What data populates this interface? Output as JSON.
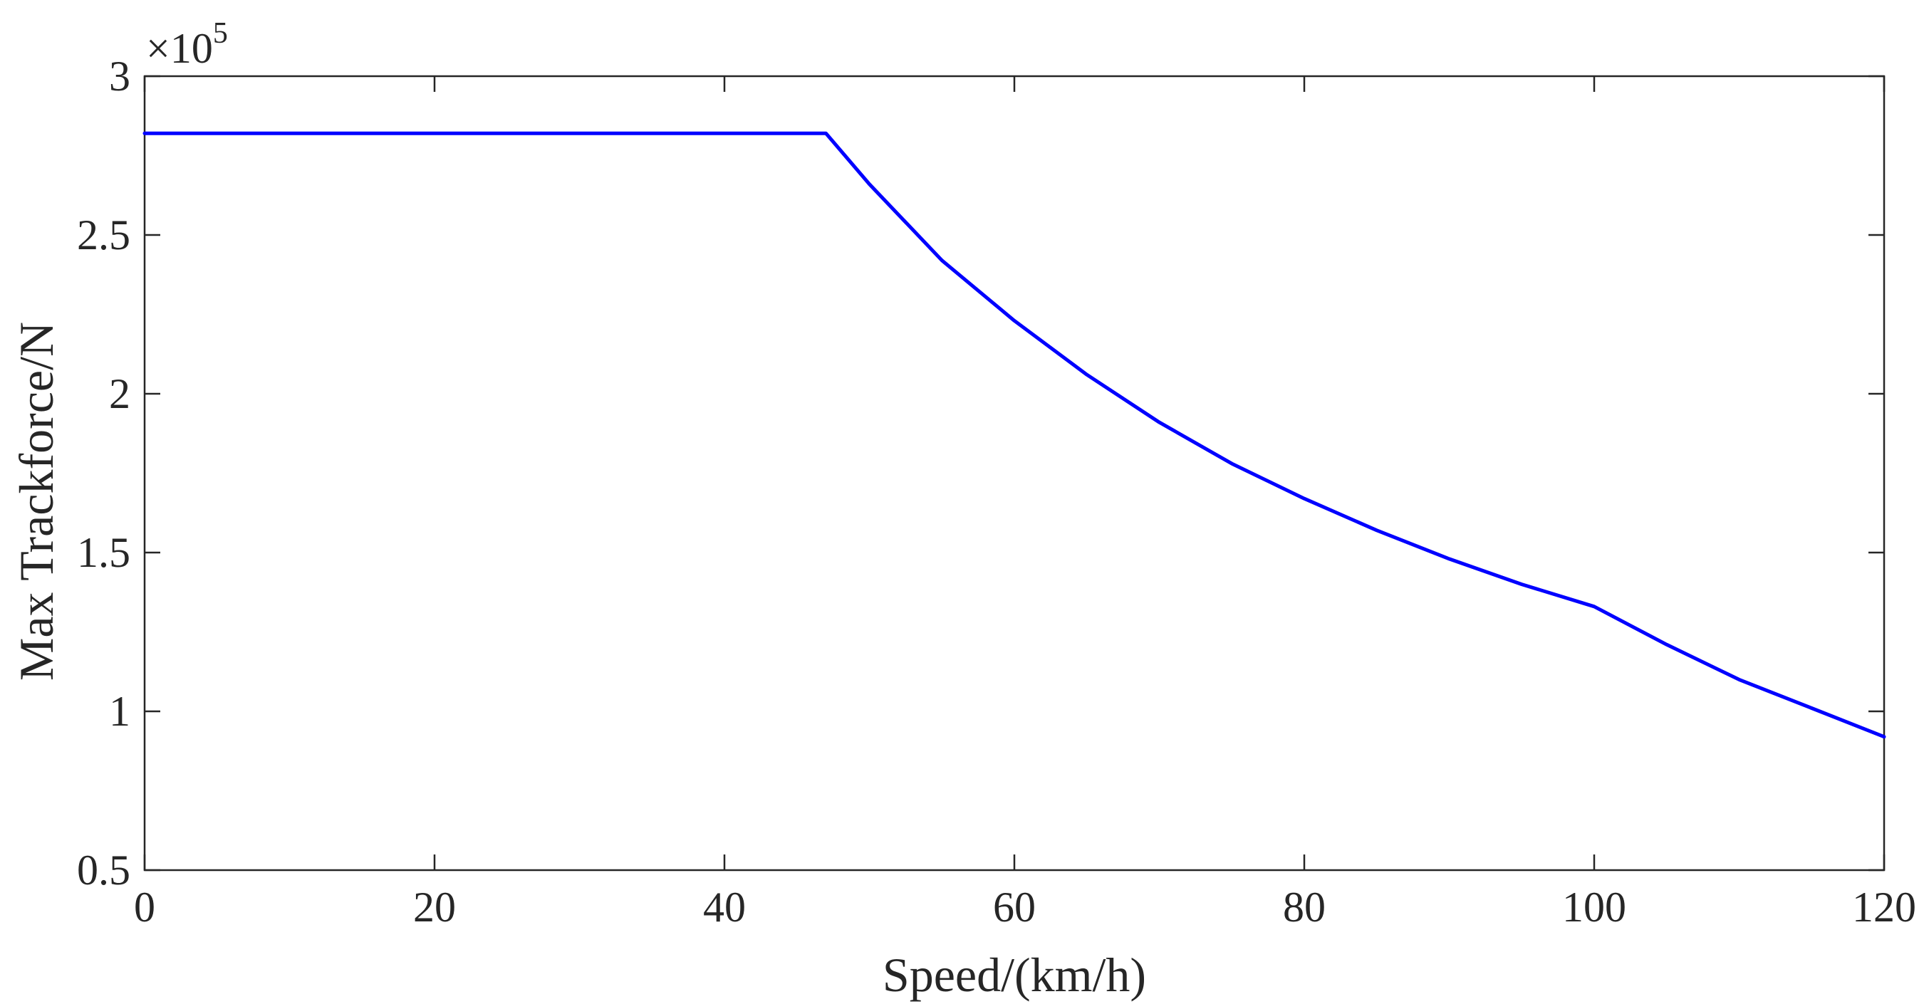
{
  "chart_data": {
    "type": "line",
    "title": "",
    "xlabel": "Speed/(km/h)",
    "ylabel": "Max Trackforce/N",
    "y_multiplier": "×10",
    "y_multiplier_exponent": "5",
    "xlim": [
      0,
      120
    ],
    "ylim": [
      0.5,
      3
    ],
    "y_scale_factor": 100000,
    "grid": false,
    "x_ticks": [
      0,
      20,
      40,
      60,
      80,
      100,
      120
    ],
    "x_tick_labels": [
      "0",
      "20",
      "40",
      "60",
      "80",
      "100",
      "120"
    ],
    "y_ticks": [
      0.5,
      1,
      1.5,
      2,
      2.5,
      3
    ],
    "y_tick_labels": [
      "0.5",
      "1",
      "1.5",
      "2",
      "2.5",
      "3"
    ],
    "colors": {
      "line": "#0000ff",
      "axes": "#262626"
    },
    "series": [
      {
        "x": [
          0,
          10,
          20,
          30,
          40,
          47,
          50,
          55,
          60,
          65,
          70,
          75,
          80,
          85,
          90,
          95,
          100,
          105,
          110,
          115,
          120
        ],
        "y": [
          2.82,
          2.82,
          2.82,
          2.82,
          2.82,
          2.82,
          2.66,
          2.42,
          2.23,
          2.06,
          1.91,
          1.78,
          1.67,
          1.57,
          1.48,
          1.4,
          1.33,
          1.21,
          1.1,
          1.01,
          0.92
        ]
      }
    ]
  }
}
